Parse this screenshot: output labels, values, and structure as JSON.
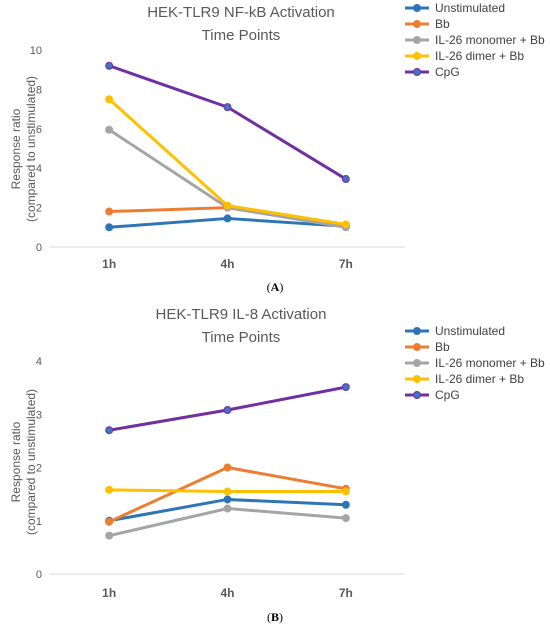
{
  "chart_data": [
    {
      "type": "line",
      "title": [
        "HEK-TLR9 NF-kB Activation",
        "Time Points"
      ],
      "ylabel": [
        "Response ratio",
        "(compared to unstimulated)"
      ],
      "xlabel": "",
      "categories": [
        "1h",
        "4h",
        "7h"
      ],
      "yticks": [
        "0",
        "2",
        "4",
        "6",
        "8",
        "10"
      ],
      "ylim": [
        0,
        10
      ],
      "grid": false,
      "legend_position": "right",
      "series": [
        {
          "name": "Unstimulated",
          "color": "#2e75b6",
          "values": [
            1.0,
            1.45,
            1.05
          ]
        },
        {
          "name": "Bb",
          "color": "#ed7d31",
          "values": [
            1.8,
            2.0,
            1.05
          ]
        },
        {
          "name": "IL-26 monomer + Bb",
          "color": "#a5a5a5",
          "values": [
            5.95,
            2.0,
            1.0
          ]
        },
        {
          "name": "IL-26 dimer + Bb",
          "color": "#ffc000",
          "values": [
            7.5,
            2.1,
            1.15
          ]
        },
        {
          "name": "CpG",
          "color": "#7030a0",
          "marker_color": "#4472c4",
          "values": [
            9.2,
            7.1,
            3.45
          ]
        }
      ],
      "caption_open": "(",
      "caption_letter": "A",
      "caption_close": ")"
    },
    {
      "type": "line",
      "title": [
        "HEK-TLR9 IL-8 Activation",
        "Time Points"
      ],
      "ylabel": [
        "Response ratio",
        "(compared to unstimulated)"
      ],
      "xlabel": "",
      "categories": [
        "1h",
        "4h",
        "7h"
      ],
      "yticks": [
        "0",
        "1",
        "2",
        "3",
        "4"
      ],
      "ylim": [
        0,
        4
      ],
      "grid": false,
      "legend_position": "right",
      "series": [
        {
          "name": "Unstimulated",
          "color": "#2e75b6",
          "values": [
            1.0,
            1.4,
            1.3
          ]
        },
        {
          "name": "Bb",
          "color": "#ed7d31",
          "values": [
            0.98,
            2.0,
            1.6
          ]
        },
        {
          "name": "IL-26 monomer + Bb",
          "color": "#a5a5a5",
          "values": [
            0.72,
            1.23,
            1.05
          ]
        },
        {
          "name": "IL-26 dimer + Bb",
          "color": "#ffc000",
          "values": [
            1.58,
            1.55,
            1.55
          ]
        },
        {
          "name": "CpG",
          "color": "#7030a0",
          "marker_color": "#4472c4",
          "values": [
            2.7,
            3.08,
            3.51
          ]
        }
      ],
      "caption_open": "(",
      "caption_letter": "B",
      "caption_close": ")"
    }
  ]
}
